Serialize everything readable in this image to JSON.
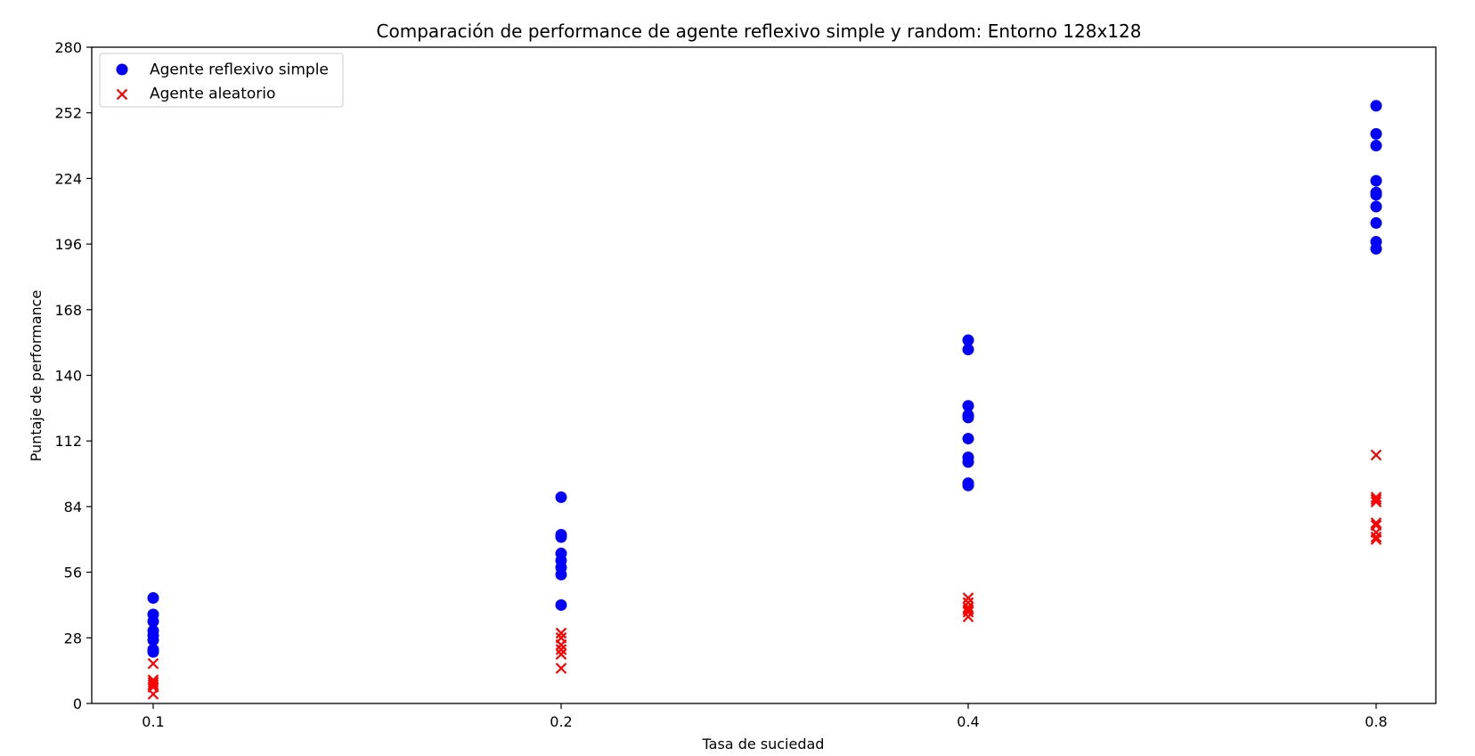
{
  "chart_data": {
    "type": "scatter",
    "title": "Comparación de performance de agente reflexivo simple y random: Entorno 128x128",
    "xlabel": "Tasa de suciedad",
    "ylabel": "Puntaje de performance",
    "x_scale": "categorical",
    "categories": [
      "0.1",
      "0.2",
      "0.4",
      "0.8"
    ],
    "ylim": [
      0,
      280
    ],
    "yticks": [
      0,
      28,
      56,
      84,
      112,
      140,
      168,
      196,
      224,
      252,
      280
    ],
    "grid": false,
    "legend_position": "upper-left",
    "series": [
      {
        "name": "Agente reflexivo simple",
        "color": "#0000ff",
        "marker": "circle",
        "points": [
          {
            "x": "0.1",
            "y": 45
          },
          {
            "x": "0.1",
            "y": 38
          },
          {
            "x": "0.1",
            "y": 35
          },
          {
            "x": "0.1",
            "y": 31
          },
          {
            "x": "0.1",
            "y": 29
          },
          {
            "x": "0.1",
            "y": 27
          },
          {
            "x": "0.1",
            "y": 23
          },
          {
            "x": "0.1",
            "y": 22
          },
          {
            "x": "0.2",
            "y": 88
          },
          {
            "x": "0.2",
            "y": 72
          },
          {
            "x": "0.2",
            "y": 71
          },
          {
            "x": "0.2",
            "y": 64
          },
          {
            "x": "0.2",
            "y": 61
          },
          {
            "x": "0.2",
            "y": 58
          },
          {
            "x": "0.2",
            "y": 55
          },
          {
            "x": "0.2",
            "y": 42
          },
          {
            "x": "0.4",
            "y": 155
          },
          {
            "x": "0.4",
            "y": 151
          },
          {
            "x": "0.4",
            "y": 127
          },
          {
            "x": "0.4",
            "y": 123
          },
          {
            "x": "0.4",
            "y": 122
          },
          {
            "x": "0.4",
            "y": 113
          },
          {
            "x": "0.4",
            "y": 105
          },
          {
            "x": "0.4",
            "y": 103
          },
          {
            "x": "0.4",
            "y": 94
          },
          {
            "x": "0.4",
            "y": 93
          },
          {
            "x": "0.8",
            "y": 255
          },
          {
            "x": "0.8",
            "y": 243
          },
          {
            "x": "0.8",
            "y": 238
          },
          {
            "x": "0.8",
            "y": 223
          },
          {
            "x": "0.8",
            "y": 218
          },
          {
            "x": "0.8",
            "y": 217
          },
          {
            "x": "0.8",
            "y": 212
          },
          {
            "x": "0.8",
            "y": 205
          },
          {
            "x": "0.8",
            "y": 197
          },
          {
            "x": "0.8",
            "y": 194
          }
        ]
      },
      {
        "name": "Agente aleatorio",
        "color": "#ff0000",
        "marker": "x",
        "points": [
          {
            "x": "0.1",
            "y": 17
          },
          {
            "x": "0.1",
            "y": 10
          },
          {
            "x": "0.1",
            "y": 9
          },
          {
            "x": "0.1",
            "y": 8
          },
          {
            "x": "0.1",
            "y": 7
          },
          {
            "x": "0.1",
            "y": 4
          },
          {
            "x": "0.2",
            "y": 30
          },
          {
            "x": "0.2",
            "y": 28
          },
          {
            "x": "0.2",
            "y": 25
          },
          {
            "x": "0.2",
            "y": 23
          },
          {
            "x": "0.2",
            "y": 21
          },
          {
            "x": "0.2",
            "y": 15
          },
          {
            "x": "0.4",
            "y": 45
          },
          {
            "x": "0.4",
            "y": 43
          },
          {
            "x": "0.4",
            "y": 41
          },
          {
            "x": "0.4",
            "y": 40
          },
          {
            "x": "0.4",
            "y": 39
          },
          {
            "x": "0.4",
            "y": 37
          },
          {
            "x": "0.8",
            "y": 106
          },
          {
            "x": "0.8",
            "y": 88
          },
          {
            "x": "0.8",
            "y": 87
          },
          {
            "x": "0.8",
            "y": 86
          },
          {
            "x": "0.8",
            "y": 77
          },
          {
            "x": "0.8",
            "y": 76
          },
          {
            "x": "0.8",
            "y": 73
          },
          {
            "x": "0.8",
            "y": 71
          },
          {
            "x": "0.8",
            "y": 70
          }
        ]
      }
    ]
  }
}
